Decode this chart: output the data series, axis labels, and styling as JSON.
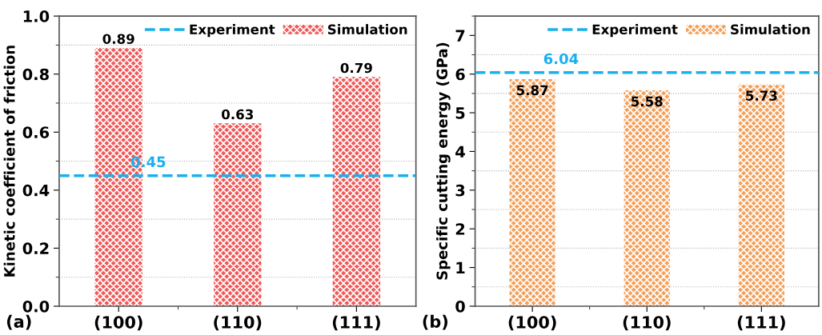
{
  "chart_data": [
    {
      "type": "bar",
      "ylabel": "Kinetic coefficient of friction",
      "categories": [
        "(100)",
        "(110)",
        "(111)"
      ],
      "series": [
        {
          "name": "Simulation",
          "color": "#f05a5a",
          "values": [
            0.89,
            0.63,
            0.79
          ]
        }
      ],
      "data_labels": true,
      "ylim": [
        0,
        1.0
      ],
      "yticks": [
        {
          "value": 0,
          "label": "0.0"
        },
        {
          "value": 0.2,
          "label": "0.2"
        },
        {
          "value": 0.4,
          "label": "0.4"
        },
        {
          "value": 0.6,
          "label": "0.6"
        },
        {
          "value": 0.8,
          "label": "0.8"
        },
        {
          "value": 1.0,
          "label": "1.0"
        }
      ],
      "ref_lines": [
        {
          "axis": "y",
          "value": 0.45,
          "label": "Experiment",
          "color": "#1ab0ef",
          "line_style": "dashed"
        }
      ],
      "annotations": [
        {
          "text": "0.45",
          "y": 0.45
        },
        "(a)"
      ],
      "grid": "y",
      "legend": "top right"
    },
    {
      "type": "bar",
      "ylabel": "Specific cutting energy (GPa)",
      "categories": [
        "(100)",
        "(110)",
        "(111)"
      ],
      "series": [
        {
          "name": "Simulation",
          "color": "#f5a05a",
          "values": [
            5.87,
            5.58,
            5.73
          ]
        }
      ],
      "data_labels": true,
      "ylim": [
        0,
        7.5
      ],
      "yticks": [
        0,
        1,
        2,
        3,
        4,
        5,
        6,
        7
      ],
      "ref_lines": [
        {
          "axis": "y",
          "value": 6.04,
          "label": "Experiment",
          "color": "#1ab0ef",
          "line_style": "dashed"
        }
      ],
      "annotations": [
        {
          "text": "6.04",
          "y": 6.04
        },
        "(b)"
      ],
      "grid": "y",
      "legend": "top right"
    }
  ]
}
